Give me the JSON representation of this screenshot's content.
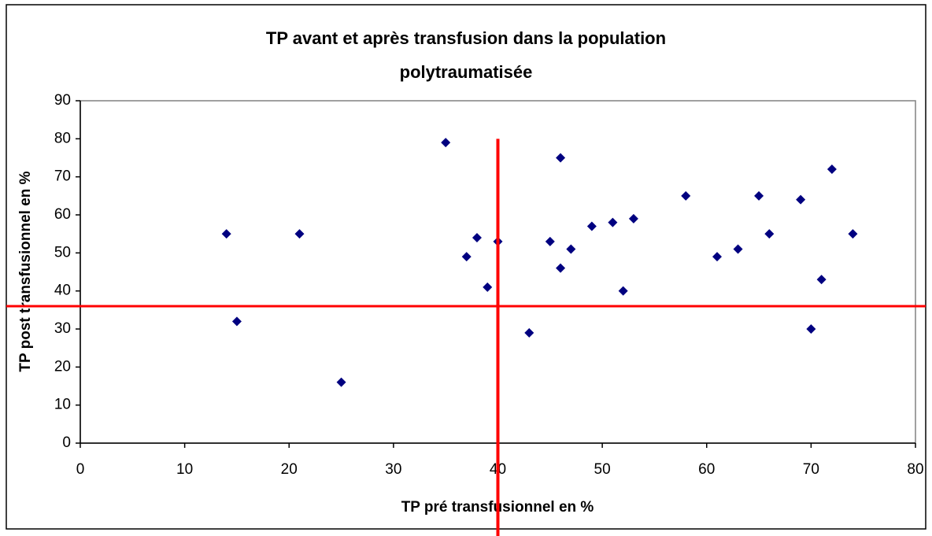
{
  "chart_data": {
    "type": "scatter",
    "title": [
      "TP avant et après transfusion dans la population",
      "polytraumatisée"
    ],
    "x_label": "TP pré transfusionnel en %",
    "y_label": "TP post transfusionnel  en %",
    "xlim": [
      0,
      80
    ],
    "xticks": [
      0,
      10,
      20,
      30,
      40,
      50,
      60,
      70,
      80
    ],
    "ylim": [
      0,
      90
    ],
    "yticks": [
      0,
      10,
      20,
      30,
      40,
      50,
      60,
      70,
      80,
      90
    ],
    "grid": false,
    "series": [
      {
        "name": "TP",
        "color": "#000080",
        "x": [
          14,
          15,
          21,
          25,
          35,
          37,
          38,
          39,
          40,
          43,
          45,
          46,
          46,
          47,
          49,
          51,
          52,
          53,
          58,
          61,
          63,
          65,
          66,
          69,
          70,
          71,
          72,
          74
        ],
        "values": [
          55,
          32,
          55,
          16,
          79,
          49,
          54,
          41,
          53,
          29,
          53,
          75,
          46,
          51,
          57,
          58,
          40,
          59,
          65,
          49,
          51,
          65,
          55,
          64,
          30,
          43,
          72,
          55
        ]
      }
    ],
    "reference_lines": [
      {
        "axis": "x",
        "value": 40,
        "ymax": 80,
        "color": "#ff0000"
      },
      {
        "axis": "y",
        "value": 36,
        "color": "#ff0000"
      }
    ]
  }
}
